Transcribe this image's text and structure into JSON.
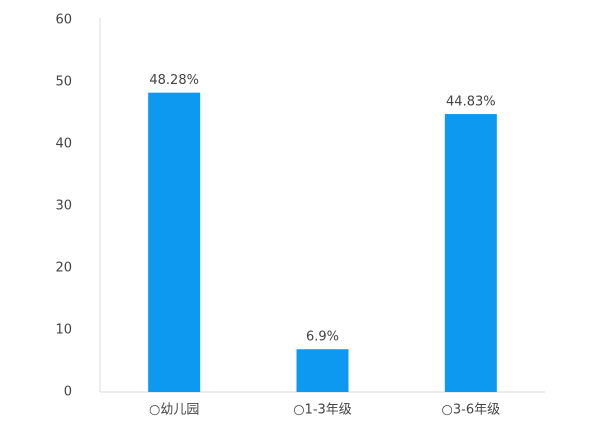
{
  "chart_data": {
    "type": "bar",
    "categories": [
      "○幼儿园",
      "○1-3年级",
      "○3-6年级"
    ],
    "values": [
      48.28,
      6.9,
      44.83
    ],
    "value_labels": [
      "48.28%",
      "6.9%",
      "44.83%"
    ],
    "color": "#0d99ef",
    "ylim": [
      0,
      60
    ],
    "yticks": [
      0,
      10,
      20,
      30,
      40,
      50,
      60
    ],
    "grid": false
  }
}
